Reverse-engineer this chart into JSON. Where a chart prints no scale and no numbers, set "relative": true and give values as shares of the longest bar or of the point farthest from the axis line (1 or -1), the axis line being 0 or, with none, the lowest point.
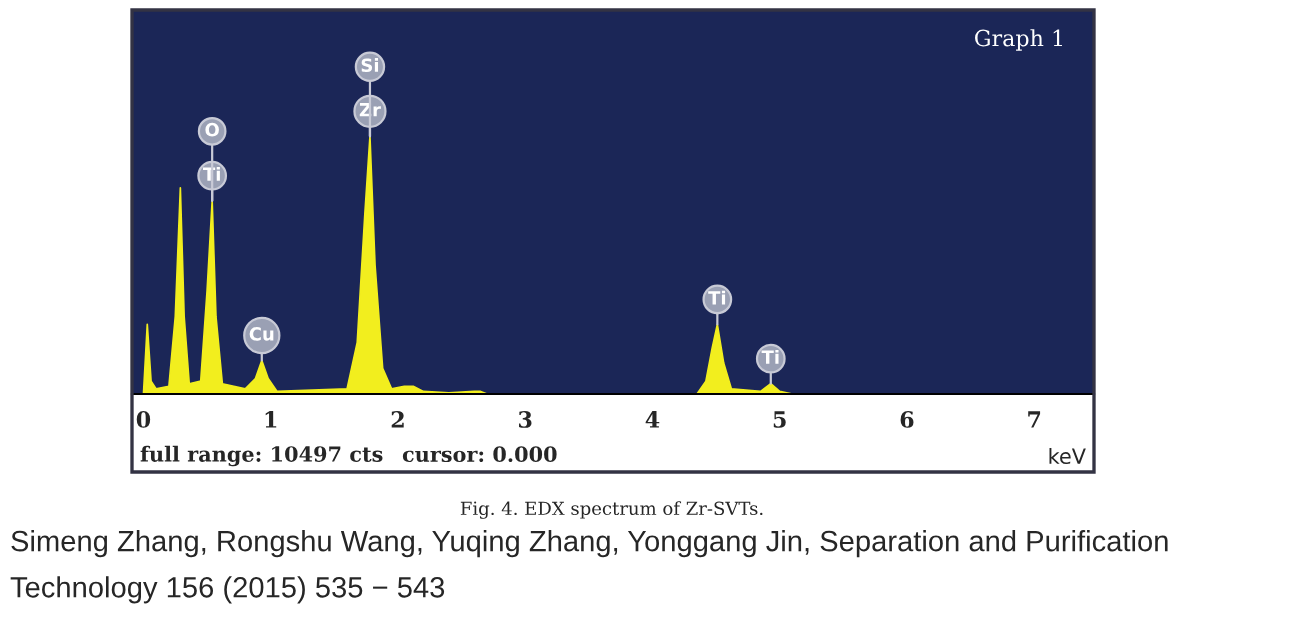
{
  "chart_data": {
    "type": "area",
    "title": "Graph 1",
    "xlabel": "keV",
    "relative": true,
    "x": [
      -0.05,
      0.0,
      0.03,
      0.06,
      0.1,
      0.2,
      0.25,
      0.29,
      0.32,
      0.36,
      0.45,
      0.5,
      0.54,
      0.57,
      0.62,
      0.8,
      0.88,
      0.93,
      0.98,
      1.05,
      1.6,
      1.68,
      1.74,
      1.78,
      1.82,
      1.88,
      1.95,
      2.05,
      2.12,
      2.2,
      2.4,
      2.6,
      2.65,
      2.7,
      4.35,
      4.42,
      4.47,
      4.51,
      4.56,
      4.62,
      4.85,
      4.93,
      5.0,
      5.1,
      7.45
    ],
    "series": [
      {
        "color": "#f2ee1e",
        "values": [
          0,
          0,
          0.27,
          0.05,
          0.02,
          0.03,
          0.3,
          0.8,
          0.3,
          0.04,
          0.05,
          0.4,
          0.75,
          0.3,
          0.04,
          0.02,
          0.06,
          0.13,
          0.06,
          0.01,
          0.02,
          0.2,
          0.7,
          1,
          0.5,
          0.1,
          0.02,
          0.03,
          0.03,
          0.01,
          0.005,
          0.01,
          0.01,
          0,
          0,
          0.05,
          0.18,
          0.27,
          0.12,
          0.02,
          0.01,
          0.04,
          0.01,
          0,
          0
        ]
      }
    ],
    "xlim": [
      -0.09,
      7.47
    ],
    "xticks": [
      0,
      1,
      2,
      3,
      4,
      5,
      6,
      7
    ],
    "grid": false,
    "annotations": [
      {
        "text": "Zr",
        "x": 1.78,
        "y": 1
      },
      {
        "text": "Si",
        "x": 1.78,
        "y": 1
      },
      {
        "text": "Ti",
        "x": 0.54,
        "y": 0.75
      },
      {
        "text": "O",
        "x": 0.54,
        "y": 0.75
      },
      {
        "text": "Cu",
        "x": 0.93,
        "y": 0.13
      },
      {
        "text": "Ti",
        "x": 4.51,
        "y": 0.27
      },
      {
        "text": "Ti",
        "x": 4.93,
        "y": 0.04
      },
      "full range: 10497 cts",
      "cursor: 0.000",
      "Fig. 4. EDX spectrum of Zr-SVTs.",
      "Simeng Zhang, Rongshu Wang, Yuqing Zhang, Yonggang Jin, Separation and Purification Technology 156 (2015) 535 − 543"
    ]
  }
}
